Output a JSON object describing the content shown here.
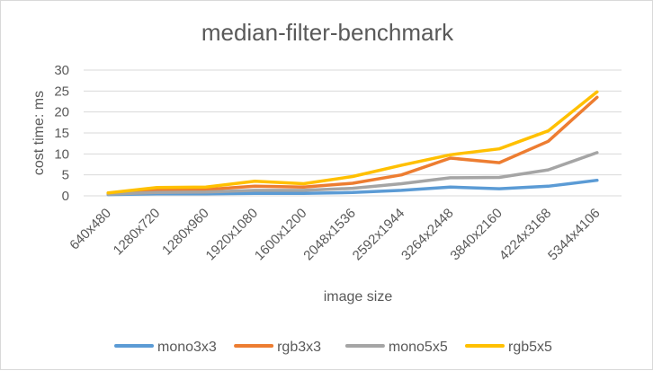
{
  "chart_data": {
    "type": "line",
    "title": "median-filter-benchmark",
    "xlabel": "image size",
    "ylabel": "cost  time: ms",
    "ylim": [
      0,
      30
    ],
    "yticks": [
      0,
      5,
      10,
      15,
      20,
      25,
      30
    ],
    "grid": true,
    "legend_position": "bottom",
    "categories": [
      "640x480",
      "1280x720",
      "1280x960",
      "1920x1080",
      "1600x1200",
      "2048x1536",
      "2592x1944",
      "3264x2448",
      "3840x2160",
      "4224x3168",
      "5344x4106"
    ],
    "series": [
      {
        "name": "mono3x3",
        "color": "#5b9bd5",
        "values": [
          0.3,
          0.5,
          0.5,
          0.6,
          0.6,
          0.8,
          1.3,
          2.1,
          1.7,
          2.3,
          3.7
        ]
      },
      {
        "name": "rgb3x3",
        "color": "#ed7d31",
        "values": [
          0.5,
          1.4,
          1.5,
          2.3,
          2.1,
          3.0,
          5.0,
          9.0,
          7.9,
          13.0,
          23.5
        ]
      },
      {
        "name": "mono5x5",
        "color": "#a5a5a5",
        "values": [
          0.4,
          0.8,
          0.9,
          1.3,
          1.3,
          1.8,
          2.9,
          4.3,
          4.4,
          6.2,
          10.3
        ]
      },
      {
        "name": "rgb5x5",
        "color": "#ffc000",
        "values": [
          0.7,
          2.0,
          2.1,
          3.5,
          2.9,
          4.6,
          7.3,
          9.8,
          11.2,
          15.5,
          24.8
        ]
      }
    ]
  }
}
